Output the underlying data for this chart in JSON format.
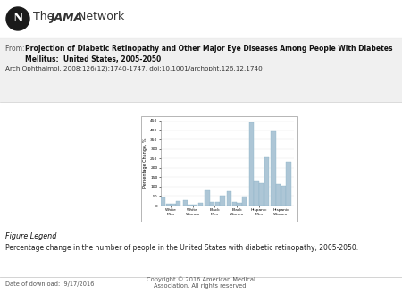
{
  "title_bold": "Projection of Diabetic Retinopathy and Other Major Eye Diseases Among People With Diabetes\nMellitus:  United States, 2005-2050",
  "citation": "Arch Ophthalmol. 2008;126(12):1740-1747. doi:10.1001/archopht.126.12.1740",
  "figure_legend_title": "Figure Legend",
  "figure_legend_text": "Percentage change in the number of people in the United States with diabetic retinopathy, 2005-2050.",
  "date_of_download": "Date of download:  9/17/2016",
  "copyright": "Copyright © 2016 American Medical\nAssociation. All rights reserved.",
  "bar_color": "#adc6d6",
  "ylabel": "Percentage Change, %",
  "ylim": [
    0,
    450
  ],
  "yticks": [
    0,
    50,
    100,
    150,
    200,
    250,
    300,
    350,
    400,
    450
  ],
  "groups": [
    "White\nMen",
    "White\nWomen",
    "Black\nMen",
    "Black\nWomen",
    "Hispanic\nMen",
    "Hispanic\nWomen"
  ],
  "bar_data": [
    [
      42,
      10,
      10,
      25
    ],
    [
      28,
      7,
      7,
      16
    ],
    [
      82,
      20,
      18,
      52
    ],
    [
      76,
      18,
      16,
      46
    ],
    [
      440,
      128,
      118,
      258
    ],
    [
      395,
      112,
      105,
      232
    ]
  ],
  "header_bg": "#f5f5f5",
  "from_bg": "#f0f0f0"
}
